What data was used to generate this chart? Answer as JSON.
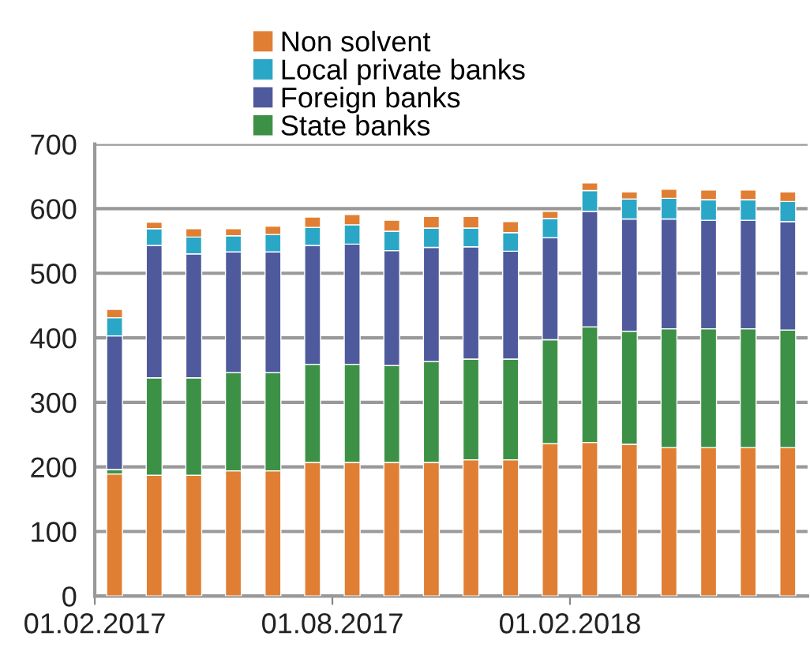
{
  "chart_data": {
    "type": "bar",
    "stacked": true,
    "categories": [
      "01.02.2017",
      null,
      null,
      null,
      null,
      null,
      "01.08.2017",
      null,
      null,
      null,
      null,
      null,
      "01.02.2018",
      null,
      null,
      null,
      null,
      null
    ],
    "series": [
      {
        "color": "#e07f33",
        "values": [
          189,
          187,
          187,
          194,
          194,
          207,
          207,
          207,
          207,
          211,
          211,
          236,
          238,
          235,
          230,
          230,
          230,
          230
        ]
      },
      {
        "name": "State banks",
        "color": "#3d9146",
        "values": [
          7,
          151,
          151,
          152,
          152,
          152,
          152,
          150,
          156,
          156,
          156,
          161,
          179,
          175,
          184,
          184,
          184,
          182
        ]
      },
      {
        "name": "Foreign banks",
        "color": "#4f5a9c",
        "values": [
          207,
          205,
          192,
          187,
          187,
          184,
          186,
          178,
          177,
          174,
          167,
          158,
          179,
          174,
          170,
          168,
          168,
          168
        ]
      },
      {
        "name": "Local private banks",
        "color": "#2aa7c7",
        "values": [
          28,
          26,
          26,
          25,
          27,
          28,
          30,
          30,
          30,
          29,
          29,
          30,
          32,
          31,
          32,
          32,
          32,
          31
        ]
      },
      {
        "name": "Non solvent",
        "color": "#e07f33",
        "values": [
          13,
          10,
          13,
          11,
          13,
          16,
          16,
          17,
          18,
          18,
          17,
          11,
          12,
          11,
          14,
          15,
          15,
          15
        ]
      }
    ],
    "ylim": [
      0,
      700
    ],
    "yticks": [
      0,
      100,
      200,
      300,
      400,
      500,
      600,
      700
    ],
    "grid": "y",
    "legend": "top left"
  }
}
